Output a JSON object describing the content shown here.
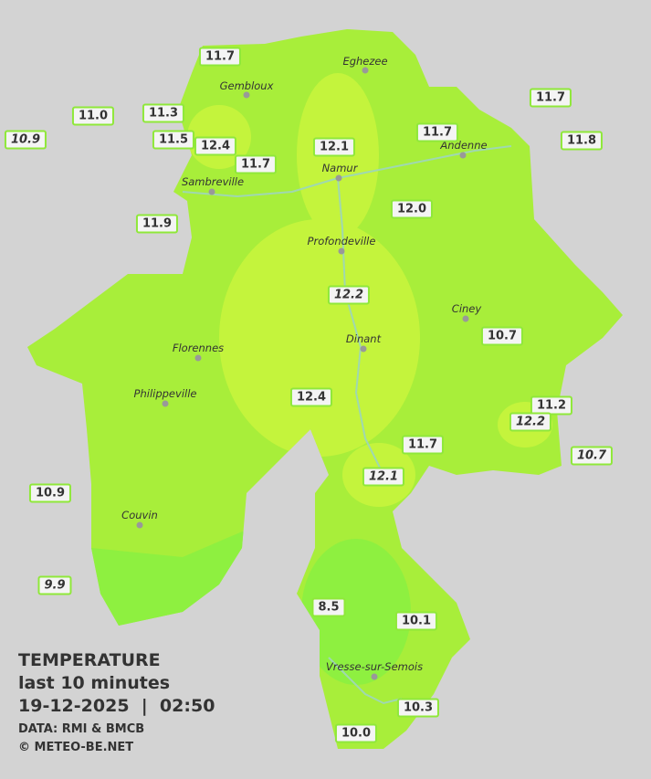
{
  "title": {
    "line1": "TEMPERATURE",
    "line2": "last 10 minutes",
    "line3": "19-12-2025  |  02:50",
    "source": "DATA: RMI & BMCB",
    "copyright": "© METEO-BE.NET"
  },
  "cities": [
    "Eghezee",
    "Gembloux",
    "Andenne",
    "Namur",
    "Sambreville",
    "Profondeville",
    "Ciney",
    "Dinant",
    "Florennes",
    "Philippeville",
    "Couvin",
    "Vresse-sur-Semois"
  ],
  "stations": [
    "11.7",
    "11.0",
    "10.9",
    "11.3",
    "11.5",
    "12.4",
    "11.7",
    "12.1",
    "11.7",
    "11.7",
    "11.8",
    "11.9",
    "12.0",
    "12.2",
    "10.7",
    "12.4",
    "11.2",
    "12.2",
    "11.7",
    "10.7",
    "12.1",
    "10.9",
    "9.9",
    "8.5",
    "10.1",
    "10.3",
    "10.0"
  ]
}
